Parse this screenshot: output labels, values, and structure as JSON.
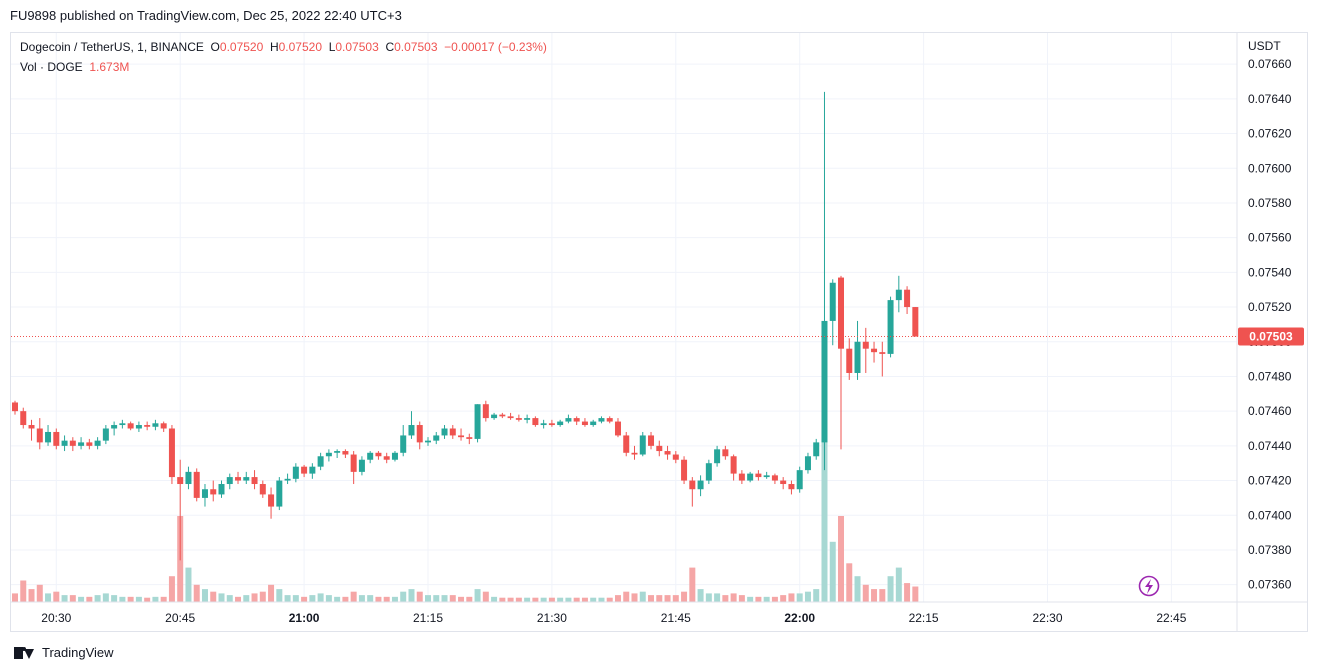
{
  "header": {
    "published": "FU9898 published on TradingView.com, Dec 25, 2022 22:40 UTC+3"
  },
  "legend": {
    "symbol": "Dogecoin / TetherUS, 1, BINANCE",
    "o_label": "O",
    "o_value": "0.07520",
    "h_label": "H",
    "h_value": "0.07520",
    "l_label": "L",
    "l_value": "0.07503",
    "c_label": "C",
    "c_value": "0.07503",
    "change": "−0.00017 (−0.23%)",
    "vol_label": "Vol · DOGE",
    "vol_value": "1.673M"
  },
  "footer": {
    "brand": "TradingView"
  },
  "colors": {
    "up": "#26a69a",
    "down": "#ef5350",
    "up_vol": "#a7d8d3",
    "down_vol": "#f5a6a6",
    "grid": "#f0f3fa"
  },
  "chart_data": {
    "type": "candlestick",
    "currency": "USDT",
    "last_price": "0.07503",
    "y_axis": {
      "min": 0.0735,
      "max": 0.0766,
      "ticks": [
        "0.07360",
        "0.07380",
        "0.07400",
        "0.07420",
        "0.07440",
        "0.07460",
        "0.07480",
        "0.07500",
        "0.07520",
        "0.07540",
        "0.07560",
        "0.07580",
        "0.07600",
        "0.07620",
        "0.07640",
        "0.07660"
      ]
    },
    "x_axis": {
      "ticks": [
        {
          "label": "20:30",
          "idx": 5,
          "bold": false
        },
        {
          "label": "20:45",
          "idx": 20,
          "bold": false
        },
        {
          "label": "21:00",
          "idx": 35,
          "bold": true
        },
        {
          "label": "21:15",
          "idx": 50,
          "bold": false
        },
        {
          "label": "21:30",
          "idx": 65,
          "bold": false
        },
        {
          "label": "21:45",
          "idx": 80,
          "bold": false
        },
        {
          "label": "22:00",
          "idx": 95,
          "bold": true
        },
        {
          "label": "22:15",
          "idx": 110,
          "bold": false
        },
        {
          "label": "22:30",
          "idx": 125,
          "bold": false
        },
        {
          "label": "22:45",
          "idx": 140,
          "bold": false
        }
      ]
    },
    "candles": [
      [
        0.07465,
        0.07466,
        0.07458,
        0.0746,
        10
      ],
      [
        0.0746,
        0.07462,
        0.0745,
        0.07452,
        25
      ],
      [
        0.07452,
        0.07455,
        0.07443,
        0.0745,
        15
      ],
      [
        0.0745,
        0.07456,
        0.07438,
        0.07442,
        20
      ],
      [
        0.07442,
        0.07452,
        0.0744,
        0.07448,
        10
      ],
      [
        0.07448,
        0.0745,
        0.07438,
        0.0744,
        12
      ],
      [
        0.0744,
        0.07446,
        0.07437,
        0.07443,
        8
      ],
      [
        0.07443,
        0.07445,
        0.07437,
        0.0744,
        8
      ],
      [
        0.0744,
        0.07445,
        0.07438,
        0.07442,
        6
      ],
      [
        0.07442,
        0.07444,
        0.07438,
        0.0744,
        6
      ],
      [
        0.0744,
        0.07445,
        0.07438,
        0.07443,
        8
      ],
      [
        0.07443,
        0.07452,
        0.07441,
        0.0745,
        10
      ],
      [
        0.0745,
        0.07454,
        0.07446,
        0.07452,
        8
      ],
      [
        0.07452,
        0.07455,
        0.0745,
        0.07453,
        6
      ],
      [
        0.07453,
        0.07454,
        0.07449,
        0.0745,
        6
      ],
      [
        0.0745,
        0.07454,
        0.07448,
        0.07452,
        6
      ],
      [
        0.07452,
        0.07454,
        0.07449,
        0.07451,
        5
      ],
      [
        0.07451,
        0.07455,
        0.07449,
        0.07453,
        6
      ],
      [
        0.07453,
        0.07454,
        0.07448,
        0.0745,
        6
      ],
      [
        0.0745,
        0.07452,
        0.07418,
        0.07422,
        30
      ],
      [
        0.07422,
        0.07432,
        0.07374,
        0.07418,
        100
      ],
      [
        0.07418,
        0.07428,
        0.07415,
        0.07425,
        40
      ],
      [
        0.07425,
        0.07427,
        0.07408,
        0.0741,
        20
      ],
      [
        0.0741,
        0.07418,
        0.07405,
        0.07415,
        15
      ],
      [
        0.07415,
        0.0742,
        0.07408,
        0.07412,
        12
      ],
      [
        0.07412,
        0.0742,
        0.0741,
        0.07418,
        10
      ],
      [
        0.07418,
        0.07424,
        0.07415,
        0.07422,
        8
      ],
      [
        0.07422,
        0.07425,
        0.07418,
        0.0742,
        6
      ],
      [
        0.0742,
        0.07425,
        0.07418,
        0.07422,
        8
      ],
      [
        0.07422,
        0.07426,
        0.07415,
        0.07418,
        10
      ],
      [
        0.07418,
        0.0742,
        0.0741,
        0.07412,
        12
      ],
      [
        0.07412,
        0.07416,
        0.07398,
        0.07405,
        20
      ],
      [
        0.07405,
        0.07422,
        0.07403,
        0.0742,
        15
      ],
      [
        0.0742,
        0.07424,
        0.07418,
        0.07421,
        8
      ],
      [
        0.07421,
        0.0743,
        0.07419,
        0.07428,
        8
      ],
      [
        0.07428,
        0.07429,
        0.07422,
        0.07424,
        6
      ],
      [
        0.07424,
        0.0743,
        0.07421,
        0.07428,
        8
      ],
      [
        0.07428,
        0.07436,
        0.07426,
        0.07434,
        10
      ],
      [
        0.07434,
        0.07438,
        0.07431,
        0.07436,
        8
      ],
      [
        0.07436,
        0.07438,
        0.07433,
        0.07437,
        6
      ],
      [
        0.07437,
        0.07438,
        0.07433,
        0.07435,
        6
      ],
      [
        0.07435,
        0.07437,
        0.07418,
        0.07425,
        12
      ],
      [
        0.07425,
        0.07434,
        0.07423,
        0.07432,
        8
      ],
      [
        0.07432,
        0.07437,
        0.0743,
        0.07436,
        8
      ],
      [
        0.07436,
        0.07437,
        0.07432,
        0.07434,
        6
      ],
      [
        0.07434,
        0.07436,
        0.0743,
        0.07432,
        6
      ],
      [
        0.07432,
        0.07437,
        0.07431,
        0.07436,
        6
      ],
      [
        0.07436,
        0.07452,
        0.07434,
        0.07446,
        12
      ],
      [
        0.07446,
        0.0746,
        0.07444,
        0.07452,
        15
      ],
      [
        0.07452,
        0.07454,
        0.07438,
        0.07442,
        12
      ],
      [
        0.07442,
        0.07445,
        0.0744,
        0.07443,
        8
      ],
      [
        0.07443,
        0.07448,
        0.07441,
        0.07446,
        8
      ],
      [
        0.07446,
        0.07452,
        0.07444,
        0.0745,
        8
      ],
      [
        0.0745,
        0.07452,
        0.07444,
        0.07446,
        8
      ],
      [
        0.07446,
        0.0745,
        0.07443,
        0.07445,
        6
      ],
      [
        0.07445,
        0.07447,
        0.07441,
        0.07444,
        6
      ],
      [
        0.07444,
        0.07464,
        0.07442,
        0.07464,
        15
      ],
      [
        0.07464,
        0.07466,
        0.07454,
        0.07456,
        12
      ],
      [
        0.07456,
        0.07459,
        0.07455,
        0.07458,
        6
      ],
      [
        0.07458,
        0.07459,
        0.07456,
        0.07457,
        5
      ],
      [
        0.07457,
        0.07459,
        0.07455,
        0.07456,
        5
      ],
      [
        0.07456,
        0.07458,
        0.07454,
        0.07455,
        5
      ],
      [
        0.07455,
        0.07458,
        0.07453,
        0.07456,
        5
      ],
      [
        0.07456,
        0.07457,
        0.07451,
        0.07452,
        5
      ],
      [
        0.07452,
        0.07455,
        0.0745,
        0.07453,
        5
      ],
      [
        0.07453,
        0.07455,
        0.07451,
        0.07452,
        5
      ],
      [
        0.07452,
        0.07455,
        0.07451,
        0.07454,
        5
      ],
      [
        0.07454,
        0.07458,
        0.07453,
        0.07456,
        5
      ],
      [
        0.07456,
        0.07457,
        0.07452,
        0.07454,
        5
      ],
      [
        0.07454,
        0.07456,
        0.07451,
        0.07452,
        5
      ],
      [
        0.07452,
        0.07455,
        0.07451,
        0.07454,
        5
      ],
      [
        0.07454,
        0.07457,
        0.07453,
        0.07456,
        5
      ],
      [
        0.07456,
        0.07457,
        0.07453,
        0.07454,
        5
      ],
      [
        0.07454,
        0.07456,
        0.07445,
        0.07446,
        8
      ],
      [
        0.07446,
        0.07448,
        0.07434,
        0.07436,
        12
      ],
      [
        0.07436,
        0.0744,
        0.07432,
        0.07435,
        10
      ],
      [
        0.07435,
        0.07448,
        0.07434,
        0.07446,
        12
      ],
      [
        0.07446,
        0.07448,
        0.07438,
        0.0744,
        8
      ],
      [
        0.0744,
        0.07443,
        0.07434,
        0.07437,
        8
      ],
      [
        0.07437,
        0.0744,
        0.07432,
        0.07435,
        8
      ],
      [
        0.07435,
        0.07437,
        0.0743,
        0.07432,
        8
      ],
      [
        0.07432,
        0.07434,
        0.07418,
        0.0742,
        12
      ],
      [
        0.0742,
        0.07422,
        0.07405,
        0.07415,
        40
      ],
      [
        0.07415,
        0.07423,
        0.07411,
        0.0742,
        15
      ],
      [
        0.0742,
        0.07432,
        0.07418,
        0.0743,
        10
      ],
      [
        0.0743,
        0.0744,
        0.07428,
        0.07438,
        10
      ],
      [
        0.07438,
        0.0744,
        0.07432,
        0.07434,
        8
      ],
      [
        0.07434,
        0.07435,
        0.0742,
        0.07424,
        10
      ],
      [
        0.07424,
        0.07426,
        0.07418,
        0.0742,
        8
      ],
      [
        0.0742,
        0.07425,
        0.07419,
        0.07424,
        6
      ],
      [
        0.07424,
        0.07426,
        0.0742,
        0.07422,
        6
      ],
      [
        0.07422,
        0.07425,
        0.07421,
        0.07423,
        6
      ],
      [
        0.07423,
        0.07424,
        0.07418,
        0.0742,
        6
      ],
      [
        0.0742,
        0.07422,
        0.07415,
        0.07418,
        8
      ],
      [
        0.07418,
        0.0742,
        0.07412,
        0.07415,
        10
      ],
      [
        0.07415,
        0.07428,
        0.07413,
        0.07426,
        10
      ],
      [
        0.07426,
        0.07436,
        0.07424,
        0.07434,
        12
      ],
      [
        0.07434,
        0.07444,
        0.07432,
        0.07442,
        15
      ],
      [
        0.07442,
        0.07644,
        0.07426,
        0.07512,
        200
      ],
      [
        0.07512,
        0.07536,
        0.07498,
        0.07534,
        70
      ],
      [
        0.07537,
        0.07538,
        0.07438,
        0.07496,
        100
      ],
      [
        0.07496,
        0.07502,
        0.07478,
        0.07482,
        45
      ],
      [
        0.07482,
        0.07512,
        0.07478,
        0.075,
        30
      ],
      [
        0.075,
        0.07508,
        0.07482,
        0.07496,
        20
      ],
      [
        0.07496,
        0.075,
        0.07488,
        0.07494,
        15
      ],
      [
        0.07494,
        0.075,
        0.0748,
        0.07493,
        15
      ],
      [
        0.07493,
        0.07526,
        0.07491,
        0.07524,
        30
      ],
      [
        0.07524,
        0.07538,
        0.07517,
        0.0753,
        40
      ],
      [
        0.0753,
        0.07532,
        0.07516,
        0.0752,
        22
      ],
      [
        0.0752,
        0.0752,
        0.07503,
        0.07503,
        18
      ]
    ]
  }
}
